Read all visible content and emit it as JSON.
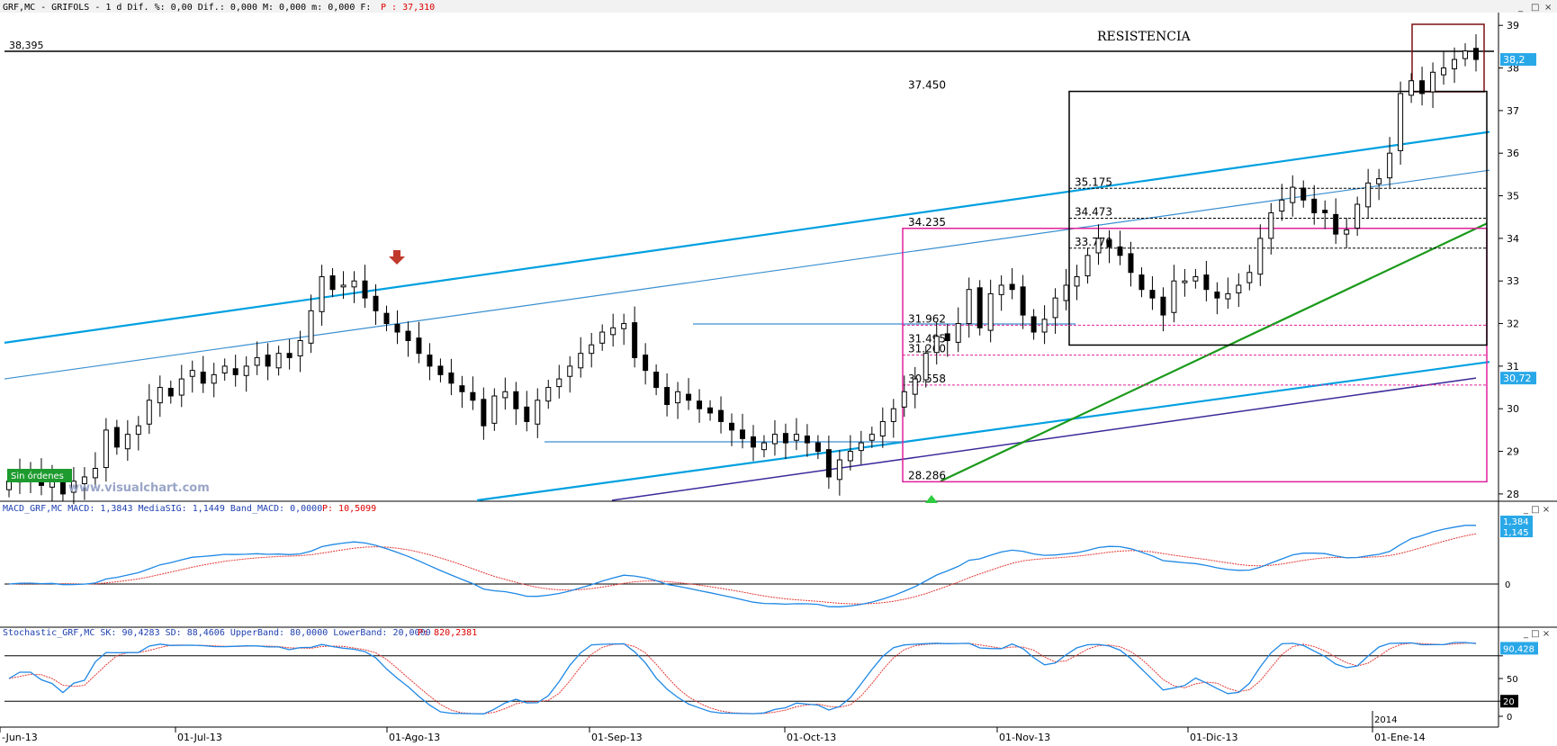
{
  "header": {
    "title": "GRF,MC - GRIFOLS -  1 d Dif. %: 0,00 Dif.: 0,000 M: 0,000 m: 0,000 F:",
    "last_label": "P : 37,310"
  },
  "watermark": "www.visualchart.com",
  "order_badge": "Sin órdenes",
  "annotations": {
    "resistencia": "RESISTENCIA",
    "resistance_level": "38,395"
  },
  "macd_header": {
    "label": "MACD_GRF,MC MACD: 1,3843 MediaSIG: 1,1449 Band_MACD: 0,0000",
    "p": "P: 10,5099"
  },
  "stoch_header": {
    "label": "Stochastic_GRF,MC SK: 90,4283 SD: 88,4606 UpperBand: 80,0000 LowerBand: 20,0000",
    "p": "P: 820,2381"
  },
  "colors": {
    "channel": "#00a0e0",
    "trend": "#1a9a1a",
    "box": "#e0209a",
    "sma": "#3a2a9a",
    "resbox": "#7a1010",
    "macd_up": "#1e88e5",
    "macd_dn": "#e53935"
  },
  "chart_data": {
    "type": "candlestick",
    "x_labels": [
      "-Jun-13",
      "01-Jul-13",
      "01-Ago-13",
      "01-Sep-13",
      "01-Oct-13",
      "01-Nov-13",
      "01-Dic-13",
      "2014",
      "01-Ene-14"
    ],
    "y_ticks": [
      28,
      29,
      30,
      31,
      32,
      33,
      34,
      35,
      36,
      37,
      38,
      39
    ],
    "y_range": [
      27.85,
      39.3
    ],
    "price_tags": {
      "last": "38,2",
      "sma": "30,72"
    },
    "levels": [
      {
        "value": 37.45,
        "label": "37.450"
      },
      {
        "value": 35.175,
        "label": "35.175"
      },
      {
        "value": 34.473,
        "label": "34.473"
      },
      {
        "value": 34.235,
        "label": "34.235"
      },
      {
        "value": 33.77,
        "label": "33.770"
      },
      {
        "value": 31.962,
        "label": "31.962"
      },
      {
        "value": 31.495,
        "label": "31.495"
      },
      {
        "value": 31.26,
        "label": "31.260"
      },
      {
        "value": 30.558,
        "label": "30.558"
      },
      {
        "value": 28.286,
        "label": "28.286"
      }
    ],
    "closes": [
      28.3,
      28.5,
      28.4,
      28.2,
      28.4,
      28.0,
      28.3,
      28.4,
      28.6,
      29.5,
      29.1,
      29.4,
      29.6,
      30.2,
      30.5,
      30.3,
      30.7,
      30.9,
      30.6,
      30.8,
      31.0,
      30.8,
      31.0,
      31.2,
      31.0,
      31.3,
      31.2,
      31.6,
      32.3,
      33.1,
      32.8,
      32.9,
      33.0,
      32.6,
      32.3,
      32.0,
      31.8,
      31.6,
      31.3,
      31.0,
      30.8,
      30.6,
      30.4,
      30.2,
      29.6,
      30.3,
      30.4,
      30.0,
      29.7,
      30.2,
      30.5,
      30.7,
      31.0,
      31.3,
      31.5,
      31.8,
      31.9,
      32.0,
      31.2,
      30.9,
      30.5,
      30.1,
      30.4,
      30.2,
      30.0,
      29.9,
      29.7,
      29.5,
      29.3,
      29.1,
      29.2,
      29.4,
      29.2,
      29.4,
      29.2,
      29.0,
      28.4,
      28.8,
      29.0,
      29.2,
      29.4,
      29.7,
      30.0,
      30.4,
      30.7,
      31.3,
      31.7,
      31.6,
      32.0,
      32.8,
      31.9,
      32.7,
      32.9,
      32.8,
      32.2,
      31.8,
      32.1,
      32.6,
      32.9,
      33.1,
      33.6,
      34.0,
      33.8,
      33.6,
      33.2,
      32.8,
      32.6,
      32.2,
      33.0,
      33.0,
      33.1,
      32.8,
      32.6,
      32.7,
      32.9,
      33.2,
      34.0,
      34.6,
      34.9,
      35.2,
      34.9,
      34.6,
      34.6,
      34.1,
      34.2,
      34.8,
      35.3,
      35.4,
      36.0,
      37.4,
      37.7,
      37.4,
      37.9,
      38.0,
      38.2,
      38.4,
      38.2
    ],
    "sma_tag": "30,72",
    "macd_tags": {
      "macd": "1,384",
      "signal": "1,145",
      "zero": "0"
    },
    "stoch_ticks": [
      0,
      20,
      50,
      80
    ],
    "stoch_tags": {
      "sk": "90,428"
    }
  }
}
